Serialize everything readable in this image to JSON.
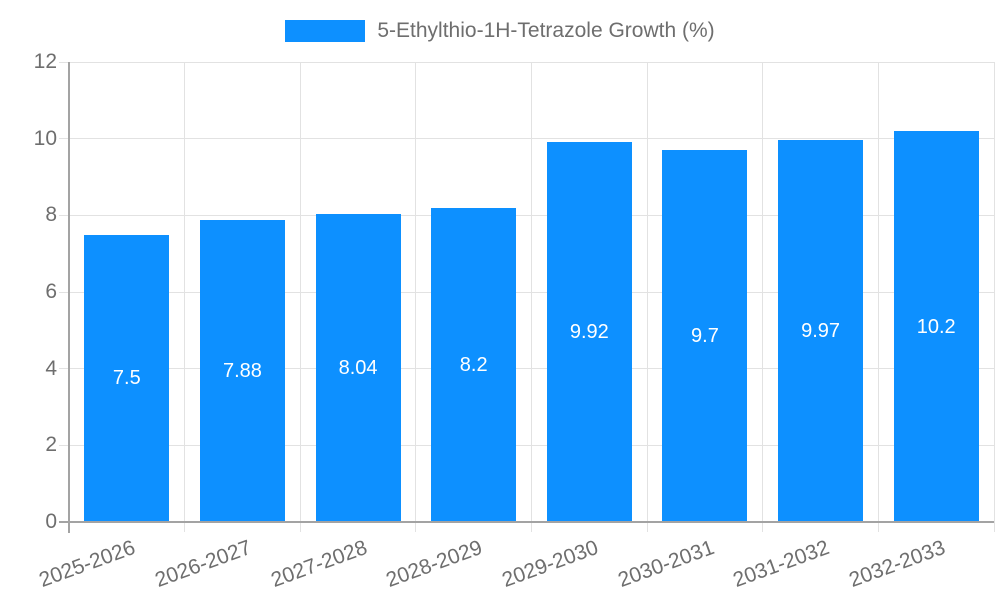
{
  "chart_data": {
    "type": "bar",
    "title": "5-Ethylthio-1H-Tetrazole Growth (%)",
    "legend": "5-Ethylthio-1H-Tetrazole Growth (%)",
    "legend_position": "top",
    "categories": [
      "2025-2026",
      "2026-2027",
      "2027-2028",
      "2028-2029",
      "2029-2030",
      "2030-2031",
      "2031-2032",
      "2032-2033"
    ],
    "values": [
      7.5,
      7.88,
      8.04,
      8.2,
      9.92,
      9.7,
      9.97,
      10.2
    ],
    "bar_labels": [
      "7.5",
      "7.88",
      "8.04",
      "8.2",
      "9.92",
      "9.7",
      "9.97",
      "10.2"
    ],
    "xlabel": "",
    "ylabel": "",
    "ylim": [
      0,
      12
    ],
    "y_ticks": [
      0,
      2,
      4,
      6,
      8,
      10,
      12
    ],
    "y_tick_labels": [
      "0",
      "2",
      "4",
      "6",
      "8",
      "10",
      "12"
    ],
    "grid": true,
    "colors": {
      "bar": "#0d90ff",
      "bar_label_text": "#ffffff",
      "axis_text": "#6e6e6e",
      "gridline": "#e2e2e2",
      "axis_line": "#a3a3a3",
      "background": "#ffffff"
    }
  }
}
